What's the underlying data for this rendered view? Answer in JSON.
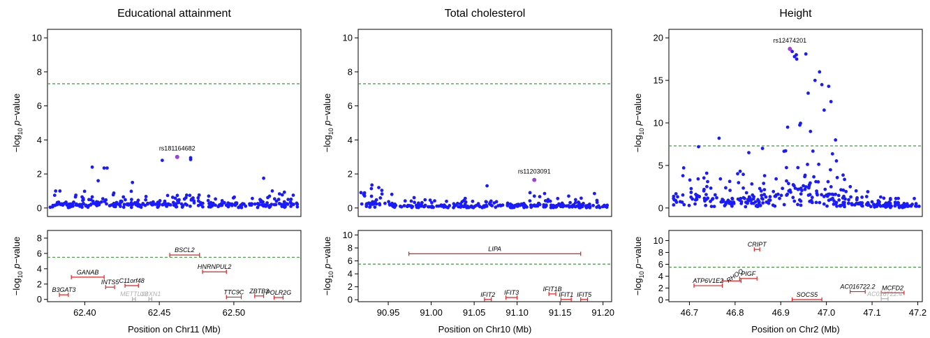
{
  "colors": {
    "points": "#1a1aff",
    "lead": "#a040e0",
    "threshold": "#2e8b2e",
    "genes": "#e02020",
    "genes_muted": "#b0b0b0"
  },
  "chart_data": [
    {
      "type": "scatter",
      "title": "Educational attainment",
      "xlabel": "Position on Chr11 (Mb)",
      "ylabel": "−log10 p−value",
      "xlim": [
        62.375,
        62.545
      ],
      "xticks": [
        "62.40",
        "62.45",
        "62.50"
      ],
      "xtick_values": [
        62.4,
        62.45,
        62.5
      ],
      "top": {
        "ylim": [
          -0.5,
          10.5
        ],
        "yticks": [
          0,
          2,
          4,
          6,
          8,
          10
        ],
        "threshold": 7.3,
        "lead_snp": {
          "label": "rs181164682",
          "x": 62.462,
          "y": 3.0
        },
        "seed": 11,
        "n_points": 300,
        "profile": [
          [
            62.378,
            0.45
          ],
          [
            62.42,
            0.6
          ],
          [
            62.46,
            0.5
          ],
          [
            62.5,
            0.45
          ],
          [
            62.543,
            0.5
          ]
        ],
        "outliers": [
          [
            62.405,
            2.4
          ],
          [
            62.413,
            2.35
          ],
          [
            62.415,
            2.35
          ],
          [
            62.452,
            2.8
          ],
          [
            62.471,
            2.95
          ],
          [
            62.471,
            2.85
          ],
          [
            62.409,
            1.6
          ],
          [
            62.432,
            1.5
          ],
          [
            62.52,
            1.75
          ]
        ]
      },
      "bottom": {
        "ylim": [
          -0.3,
          9.0
        ],
        "yticks": [
          0,
          2,
          4,
          6,
          8
        ],
        "threshold": 5.5,
        "genes": [
          {
            "name": "BSCL2",
            "start": 62.457,
            "end": 62.477,
            "y": 5.8
          },
          {
            "name": "GANAB",
            "start": 62.391,
            "end": 62.413,
            "y": 2.9
          },
          {
            "name": "HNRNPUL2",
            "start": 62.479,
            "end": 62.495,
            "y": 3.6
          },
          {
            "name": "INTS5",
            "start": 62.414,
            "end": 62.42,
            "y": 1.6
          },
          {
            "name": "C11orf48",
            "start": 62.427,
            "end": 62.436,
            "y": 1.8
          },
          {
            "name": "B3GAT3",
            "start": 62.383,
            "end": 62.389,
            "y": 0.6
          },
          {
            "name": "METTL12",
            "start": 62.432,
            "end": 62.434,
            "y": 0.05,
            "muted": true
          },
          {
            "name": "UBXN1",
            "start": 62.443,
            "end": 62.445,
            "y": 0.05,
            "muted": true
          },
          {
            "name": "TTC9C",
            "start": 62.495,
            "end": 62.505,
            "y": 0.3
          },
          {
            "name": "ZBTB3",
            "start": 62.514,
            "end": 62.52,
            "y": 0.45
          },
          {
            "name": "POLR2G",
            "start": 62.527,
            "end": 62.533,
            "y": 0.25
          }
        ]
      }
    },
    {
      "type": "scatter",
      "title": "Total cholesterol",
      "xlabel": "Position on Chr10 (Mb)",
      "ylabel": "−log10 p−value",
      "xlim": [
        90.915,
        91.21
      ],
      "xticks": [
        "90.95",
        "91.00",
        "91.05",
        "91.10",
        "91.15",
        "91.20"
      ],
      "xtick_values": [
        90.95,
        91.0,
        91.05,
        91.1,
        91.15,
        91.2
      ],
      "top": {
        "ylim": [
          -0.5,
          10.5
        ],
        "yticks": [
          0,
          2,
          4,
          6,
          8,
          10
        ],
        "threshold": 7.3,
        "lead_snp": {
          "label": "rs11203091",
          "x": 91.12,
          "y": 1.65
        },
        "seed": 23,
        "n_points": 280,
        "profile": [
          [
            90.92,
            0.7
          ],
          [
            90.95,
            0.45
          ],
          [
            91.0,
            0.3
          ],
          [
            91.05,
            0.25
          ],
          [
            91.09,
            0.45
          ],
          [
            91.12,
            0.35
          ],
          [
            91.2,
            0.25
          ]
        ],
        "outliers": [
          [
            90.931,
            1.35
          ],
          [
            90.939,
            1.2
          ],
          [
            91.065,
            1.3
          ],
          [
            91.115,
            0.9
          ],
          [
            91.132,
            0.85
          ],
          [
            91.16,
            0.7
          ],
          [
            91.19,
            0.85
          ]
        ]
      },
      "bottom": {
        "ylim": [
          -0.3,
          10.7
        ],
        "yticks": [
          0,
          2,
          4,
          6,
          8,
          10
        ],
        "threshold": 5.5,
        "genes": [
          {
            "name": "LIPA",
            "start": 90.974,
            "end": 91.174,
            "y": 7.1
          },
          {
            "name": "IFIT2",
            "start": 91.062,
            "end": 91.07,
            "y": 0.05
          },
          {
            "name": "IFIT3",
            "start": 91.087,
            "end": 91.1,
            "y": 0.35
          },
          {
            "name": "IFIT1B",
            "start": 91.137,
            "end": 91.145,
            "y": 0.9
          },
          {
            "name": "IFIT1",
            "start": 91.151,
            "end": 91.163,
            "y": 0.05
          },
          {
            "name": "IFIT5",
            "start": 91.174,
            "end": 91.182,
            "y": 0.05
          }
        ]
      }
    },
    {
      "type": "scatter",
      "title": "Height",
      "xlabel": "Position on Chr2 (Mb)",
      "ylabel": "−log10 p−value",
      "xlim": [
        46.655,
        47.21
      ],
      "xticks": [
        "46.7",
        "46.8",
        "46.9",
        "47.0",
        "47.1",
        "47.2"
      ],
      "xtick_values": [
        46.7,
        46.8,
        46.9,
        47.0,
        47.1,
        47.2
      ],
      "top": {
        "ylim": [
          -1.0,
          21.0
        ],
        "yticks": [
          0,
          5,
          10,
          15,
          20
        ],
        "threshold": 7.3,
        "lead_snp": {
          "label": "rs12474201",
          "x": 46.92,
          "y": 18.7
        },
        "seed": 37,
        "n_points": 340,
        "profile": [
          [
            46.66,
            3.5
          ],
          [
            46.7,
            3.5
          ],
          [
            46.75,
            2.0
          ],
          [
            46.8,
            2.2
          ],
          [
            46.86,
            3.0
          ],
          [
            46.9,
            4.0
          ],
          [
            46.95,
            5.5
          ],
          [
            47.0,
            4.0
          ],
          [
            47.05,
            1.5
          ],
          [
            47.1,
            0.8
          ],
          [
            47.2,
            0.6
          ]
        ],
        "outliers": [
          [
            46.925,
            18.4
          ],
          [
            46.93,
            17.8
          ],
          [
            46.934,
            18.0
          ],
          [
            46.935,
            17.5
          ],
          [
            46.955,
            18.1
          ],
          [
            46.975,
            15.0
          ],
          [
            46.985,
            16.0
          ],
          [
            46.99,
            14.5
          ],
          [
            46.96,
            13.5
          ],
          [
            47.005,
            14.3
          ],
          [
            47.01,
            12.5
          ],
          [
            46.915,
            9.5
          ],
          [
            46.965,
            9.0
          ],
          [
            46.72,
            7.2
          ],
          [
            46.765,
            8.2
          ],
          [
            46.83,
            6.5
          ],
          [
            46.86,
            7.0
          ],
          [
            46.995,
            11.5
          ],
          [
            47.02,
            8.0
          ]
        ]
      },
      "bottom": {
        "ylim": [
          -0.3,
          11.7
        ],
        "yticks": [
          0,
          2,
          4,
          6,
          8,
          10
        ],
        "threshold": 5.5,
        "genes": [
          {
            "name": "CRIPT",
            "start": 46.842,
            "end": 46.854,
            "y": 8.5
          },
          {
            "name": "RHOQ",
            "start": 46.773,
            "end": 46.813,
            "y": 3.2
          },
          {
            "name": "PIGF",
            "start": 46.81,
            "end": 46.848,
            "y": 3.6
          },
          {
            "name": "ATP6V1E2",
            "start": 46.71,
            "end": 46.772,
            "y": 2.4
          },
          {
            "name": "SOCS5",
            "start": 46.925,
            "end": 46.99,
            "y": 0.05
          },
          {
            "name": "AC016722.2",
            "start": 47.052,
            "end": 47.085,
            "y": 1.4
          },
          {
            "name": "MCFD2",
            "start": 47.12,
            "end": 47.17,
            "y": 1.2
          },
          {
            "name": "AC016722.4",
            "start": 47.12,
            "end": 47.135,
            "y": 0.2,
            "muted": true
          }
        ]
      }
    }
  ]
}
